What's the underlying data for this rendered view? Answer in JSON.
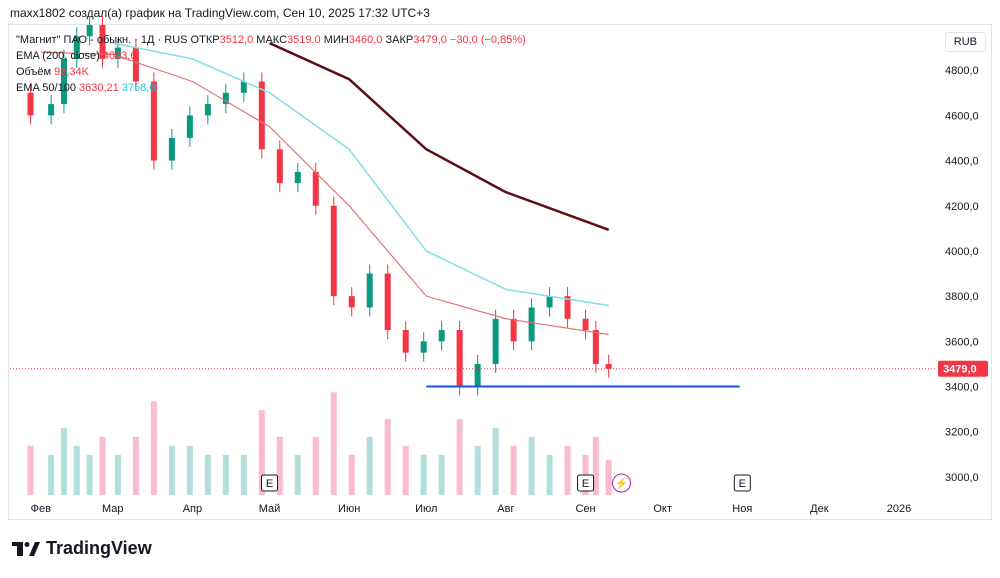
{
  "caption": "maxx1802 создал(а) график на TradingView.com, Сен 10, 2025 17:32 UTC+3",
  "legend": {
    "symbol": "\"Магнит\" ПАО - обыкн. · 1Д · RUS",
    "open_label": "ОТКР",
    "open_value": "3512,0",
    "high_label": "МАКС",
    "high_value": "3519,0",
    "low_label": "МИН",
    "low_value": "3460,0",
    "close_label": "ЗАКР",
    "close_value": "3479,0",
    "change": "−30,0 (−0,85%)",
    "ema200_label": "EMA (200, close)",
    "ema200_value": "4093,6",
    "volume_label": "Объём",
    "volume_value": "92,34K",
    "ema_pair_label": "EMA 50/100",
    "ema50_value": "3630,21",
    "ema100_value": "3758,6"
  },
  "currency": "RUB",
  "last_price_label": "3479,0",
  "footer_brand": "TradingView",
  "colors": {
    "up": "#089981",
    "down": "#f23645",
    "ema200": "#5d0e15",
    "ema50": "#e57373",
    "ema100": "#80deea",
    "support": "#1e53e5",
    "volume_up": "#b2dfdb",
    "volume_down": "#f8bbd0",
    "price_line": "#f23645"
  },
  "chart_data": {
    "type": "line",
    "title": "\"Магнит\" ПАО - обыкн. · 1Д · RUS",
    "xlabel": "",
    "ylabel": "RUB",
    "ylim": [
      2920,
      5000
    ],
    "y_ticks": [
      3000,
      3200,
      3400,
      3600,
      3800,
      4000,
      4200,
      4400,
      4600,
      4800
    ],
    "y_tick_labels": [
      "3000,0",
      "3200,0",
      "3400,0",
      "3600,0",
      "3800,0",
      "4000,0",
      "4200,0",
      "4400,0",
      "4600,0",
      "4800,0"
    ],
    "x_ticks": [
      "2025-02-01",
      "2025-03-01",
      "2025-04-01",
      "2025-05-01",
      "2025-06-01",
      "2025-07-01",
      "2025-08-01",
      "2025-09-01",
      "2025-10-01",
      "2025-11-01",
      "2025-12-01",
      "2026-01-01"
    ],
    "x_tick_labels": [
      "Фев",
      "Мар",
      "Апр",
      "Май",
      "Июн",
      "Июл",
      "Авг",
      "Сен",
      "Окт",
      "Ноя",
      "Дек",
      "2026"
    ],
    "x_range": [
      "2025-01-20",
      "2026-01-15"
    ],
    "grid": false,
    "series": [
      {
        "name": "Price",
        "x": [
          "2025-01-20",
          "2025-01-28",
          "2025-02-05",
          "2025-02-10",
          "2025-02-15",
          "2025-02-20",
          "2025-02-25",
          "2025-03-03",
          "2025-03-10",
          "2025-03-17",
          "2025-03-24",
          "2025-03-31",
          "2025-04-07",
          "2025-04-14",
          "2025-04-21",
          "2025-04-28",
          "2025-05-05",
          "2025-05-12",
          "2025-05-19",
          "2025-05-26",
          "2025-06-02",
          "2025-06-09",
          "2025-06-16",
          "2025-06-23",
          "2025-06-30",
          "2025-07-07",
          "2025-07-14",
          "2025-07-21",
          "2025-07-28",
          "2025-08-04",
          "2025-08-11",
          "2025-08-18",
          "2025-08-25",
          "2025-09-01",
          "2025-09-05",
          "2025-09-10"
        ],
        "values": [
          4700,
          4600,
          4650,
          4850,
          4950,
          5000,
          4850,
          4900,
          4750,
          4400,
          4500,
          4600,
          4650,
          4700,
          4750,
          4450,
          4300,
          4350,
          4200,
          3800,
          3750,
          3900,
          3650,
          3550,
          3600,
          3650,
          3400,
          3500,
          3700,
          3600,
          3750,
          3800,
          3700,
          3650,
          3500,
          3479
        ]
      },
      {
        "name": "EMA (200, close)",
        "x": [
          "2025-05-01",
          "2025-06-01",
          "2025-07-01",
          "2025-08-01",
          "2025-09-10"
        ],
        "values": [
          4920,
          4760,
          4450,
          4260,
          4093.6
        ]
      },
      {
        "name": "EMA 50",
        "x": [
          "2025-02-01",
          "2025-03-01",
          "2025-04-01",
          "2025-05-01",
          "2025-06-01",
          "2025-07-01",
          "2025-08-01",
          "2025-09-10"
        ],
        "values": [
          4880,
          4870,
          4750,
          4550,
          4200,
          3800,
          3700,
          3630.21
        ]
      },
      {
        "name": "EMA 100",
        "x": [
          "2025-03-01",
          "2025-04-01",
          "2025-05-01",
          "2025-06-01",
          "2025-07-01",
          "2025-08-01",
          "2025-09-10"
        ],
        "values": [
          4920,
          4850,
          4700,
          4450,
          4000,
          3830,
          3758.6
        ]
      }
    ],
    "support_level": 3400,
    "support_range": [
      "2025-07-01",
      "2025-10-31"
    ],
    "last_price": 3479,
    "volume_max": 450000,
    "event_markers": [
      {
        "date": "2025-05-01",
        "label": "E"
      },
      {
        "date": "2025-09-01",
        "label": "E"
      },
      {
        "date": "2025-09-15",
        "label": "⚡"
      },
      {
        "date": "2025-11-01",
        "label": "E"
      }
    ]
  }
}
